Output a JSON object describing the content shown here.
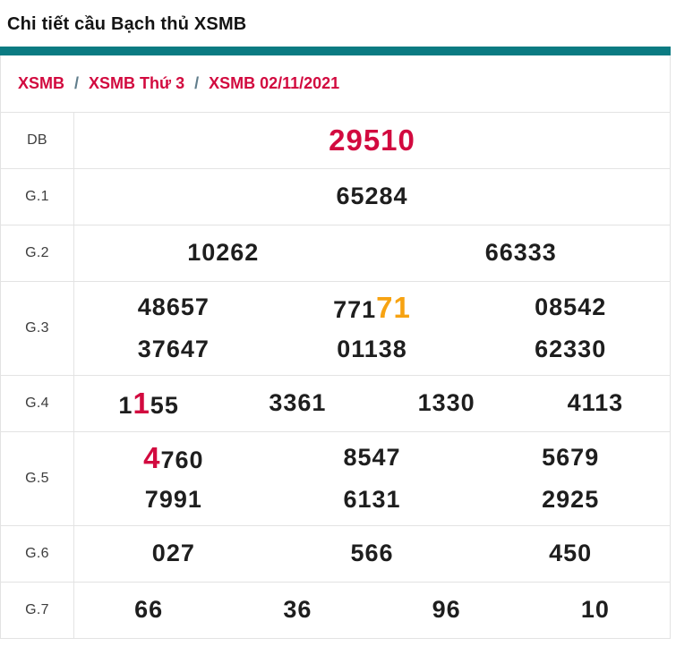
{
  "page": {
    "title": "Chi tiết cầu Bạch thủ XSMB"
  },
  "breadcrumb": {
    "separator": "/",
    "items": [
      "XSMB",
      "XSMB Thứ 3",
      "XSMB 02/11/2021"
    ]
  },
  "colors": {
    "teal": "#0b7b82",
    "crimson": "#d20a3f",
    "orange": "#f7a312",
    "border": "#e3e3e3",
    "number": "#1e1e1e",
    "label": "#3d3d3d",
    "separator": "#607d8b"
  },
  "table": {
    "rows": [
      {
        "label": "DB",
        "lines": [
          [
            {
              "parts": [
                {
                  "text": "29510",
                  "style": "db"
                }
              ]
            }
          ]
        ]
      },
      {
        "label": "G.1",
        "lines": [
          [
            {
              "parts": [
                {
                  "text": "65284"
                }
              ]
            }
          ]
        ]
      },
      {
        "label": "G.2",
        "lines": [
          [
            {
              "parts": [
                {
                  "text": "10262"
                }
              ]
            },
            {
              "parts": [
                {
                  "text": "66333"
                }
              ]
            }
          ]
        ]
      },
      {
        "label": "G.3",
        "lines": [
          [
            {
              "parts": [
                {
                  "text": "48657"
                }
              ]
            },
            {
              "parts": [
                {
                  "text": "771"
                },
                {
                  "text": "71",
                  "style": "orange"
                }
              ]
            },
            {
              "parts": [
                {
                  "text": "08542"
                }
              ]
            }
          ],
          [
            {
              "parts": [
                {
                  "text": "37647"
                }
              ]
            },
            {
              "parts": [
                {
                  "text": "01138"
                }
              ]
            },
            {
              "parts": [
                {
                  "text": "62330"
                }
              ]
            }
          ]
        ]
      },
      {
        "label": "G.4",
        "lines": [
          [
            {
              "parts": [
                {
                  "text": "1"
                },
                {
                  "text": "1",
                  "style": "red"
                },
                {
                  "text": "55"
                }
              ]
            },
            {
              "parts": [
                {
                  "text": "3361"
                }
              ]
            },
            {
              "parts": [
                {
                  "text": "1330"
                }
              ]
            },
            {
              "parts": [
                {
                  "text": "4113"
                }
              ]
            }
          ]
        ]
      },
      {
        "label": "G.5",
        "lines": [
          [
            {
              "parts": [
                {
                  "text": "4",
                  "style": "red"
                },
                {
                  "text": "760"
                }
              ]
            },
            {
              "parts": [
                {
                  "text": "8547"
                }
              ]
            },
            {
              "parts": [
                {
                  "text": "5679"
                }
              ]
            }
          ],
          [
            {
              "parts": [
                {
                  "text": "7991"
                }
              ]
            },
            {
              "parts": [
                {
                  "text": "6131"
                }
              ]
            },
            {
              "parts": [
                {
                  "text": "2925"
                }
              ]
            }
          ]
        ]
      },
      {
        "label": "G.6",
        "lines": [
          [
            {
              "parts": [
                {
                  "text": "027"
                }
              ]
            },
            {
              "parts": [
                {
                  "text": "566"
                }
              ]
            },
            {
              "parts": [
                {
                  "text": "450"
                }
              ]
            }
          ]
        ]
      },
      {
        "label": "G.7",
        "lines": [
          [
            {
              "parts": [
                {
                  "text": "66"
                }
              ]
            },
            {
              "parts": [
                {
                  "text": "36"
                }
              ]
            },
            {
              "parts": [
                {
                  "text": "96"
                }
              ]
            },
            {
              "parts": [
                {
                  "text": "10"
                }
              ]
            }
          ]
        ]
      }
    ]
  }
}
